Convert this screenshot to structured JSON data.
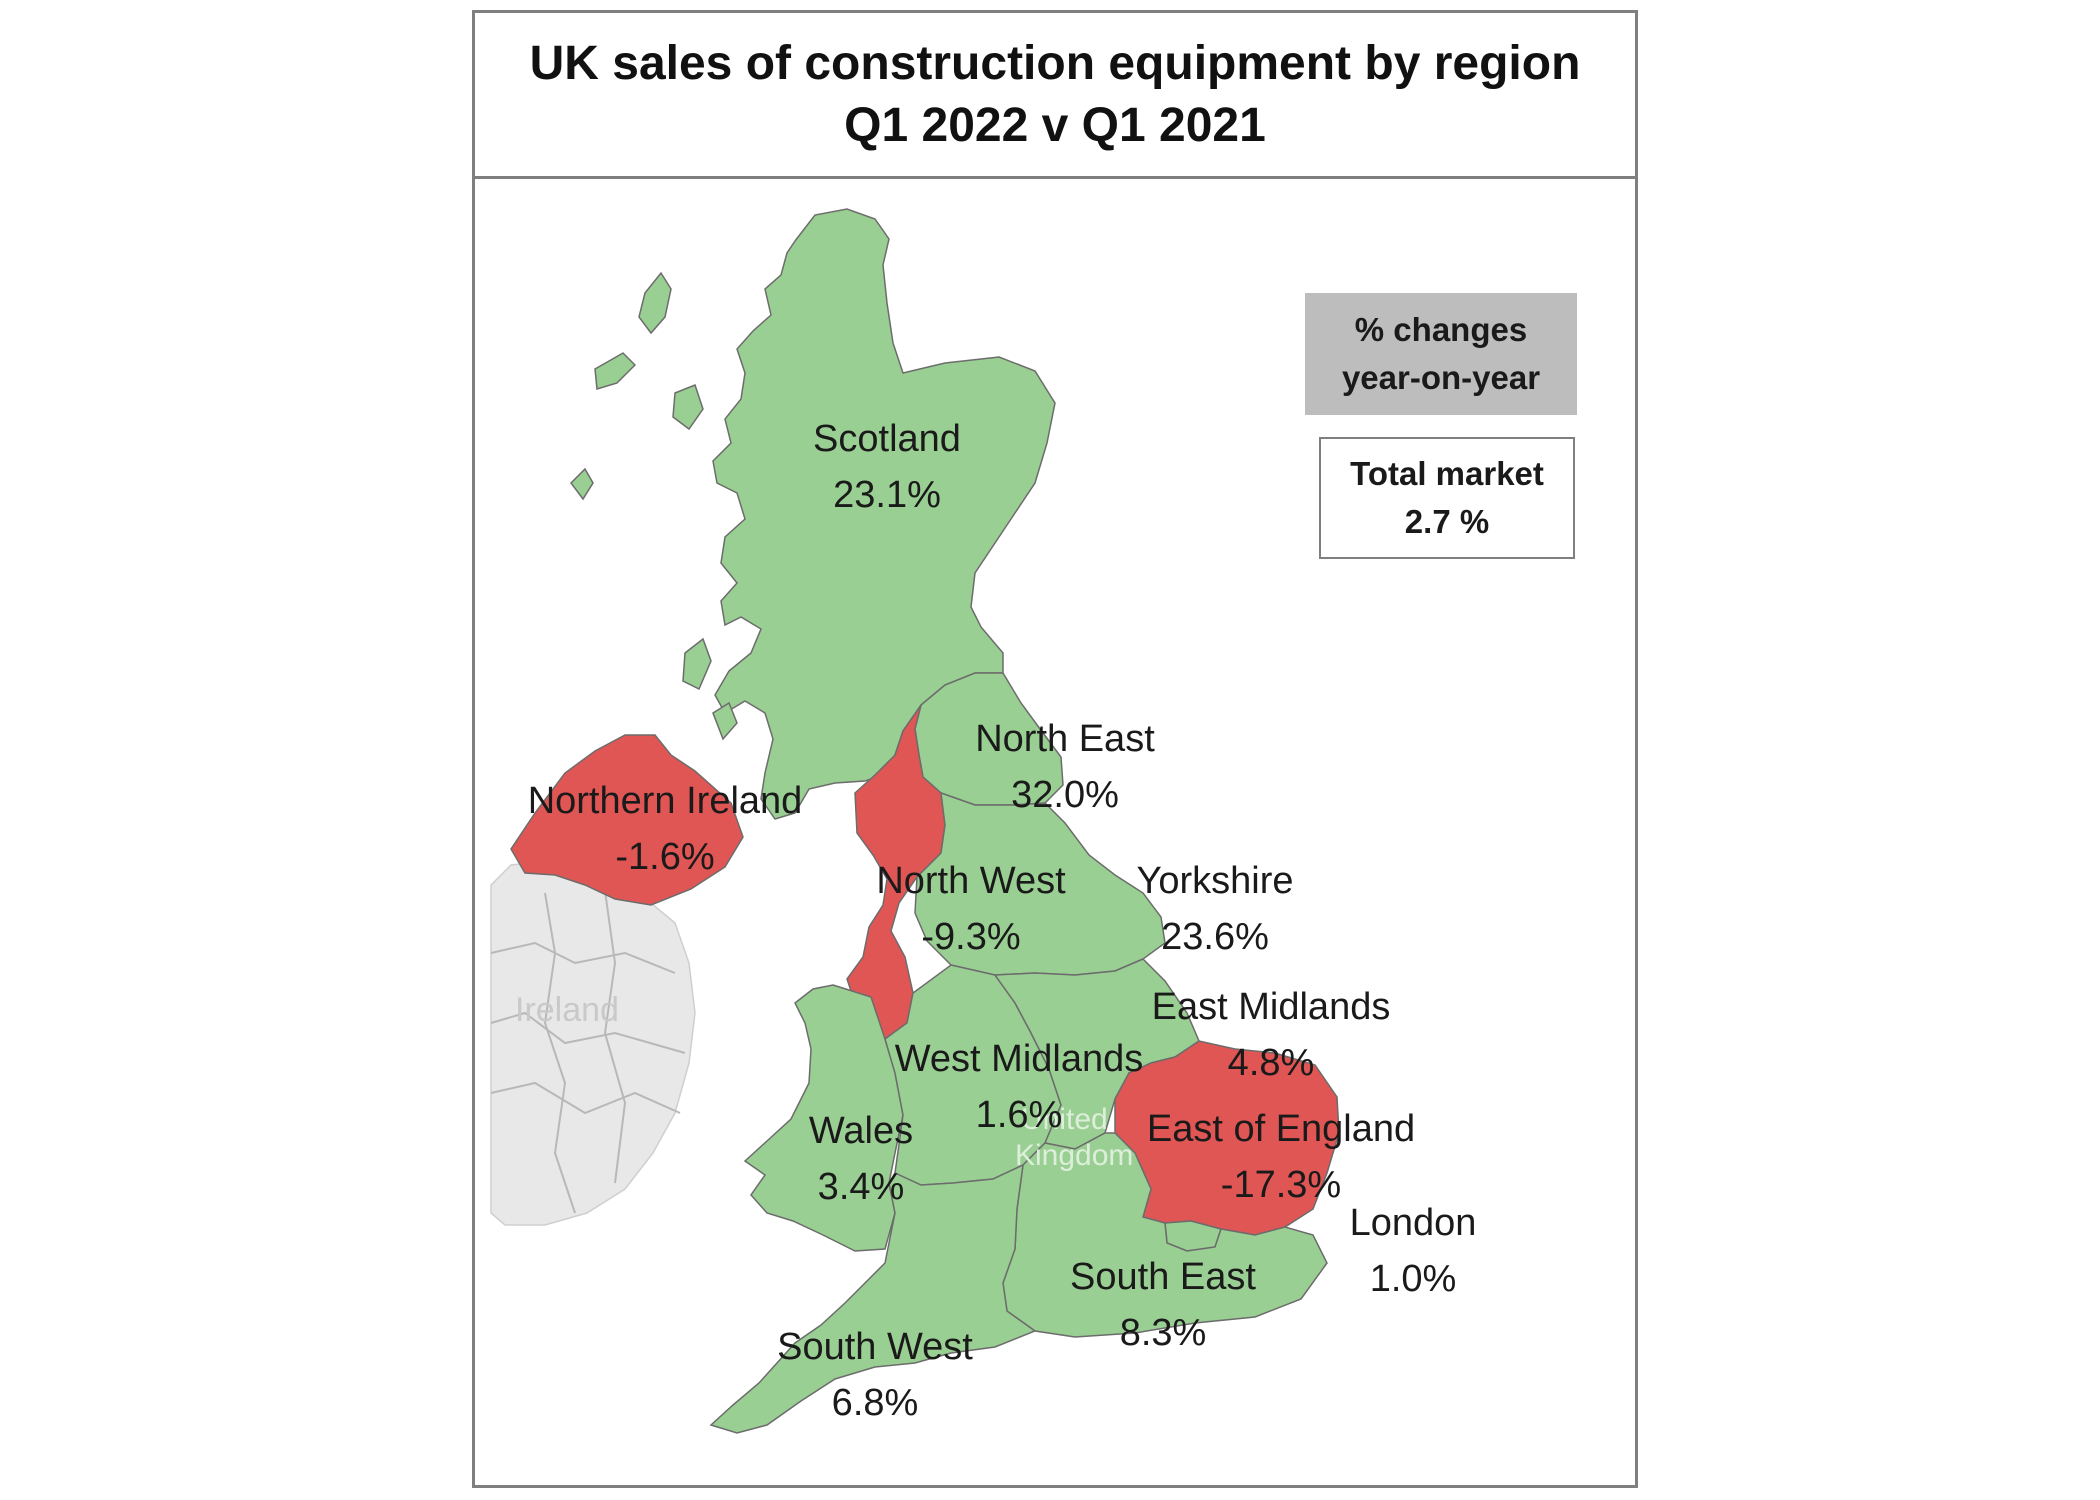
{
  "title": {
    "line1": "UK sales of construction  equipment by region",
    "line2": "Q1 2022  v  Q1 2021"
  },
  "legend": {
    "line1": "% changes",
    "line2": "year-on-year"
  },
  "total": {
    "label": "Total market",
    "value": "2.7 %"
  },
  "colors": {
    "increase": "#99cf92",
    "decrease": "#e05654",
    "ireland": "#e8e8e8",
    "border": "#6c6c6c"
  },
  "basemap": {
    "ireland": "Ireland",
    "uk_line1": "United",
    "uk_line2": "Kingdom"
  },
  "regions": [
    {
      "id": "scotland",
      "name": "Scotland",
      "value": "23.1%",
      "status": "increase"
    },
    {
      "id": "north-east",
      "name": "North East",
      "value": "32.0%",
      "status": "increase"
    },
    {
      "id": "northern-ireland",
      "name": "Northern Ireland",
      "value": "-1.6%",
      "status": "decrease"
    },
    {
      "id": "north-west",
      "name": "North West",
      "value": "-9.3%",
      "status": "decrease"
    },
    {
      "id": "yorkshire",
      "name": "Yorkshire",
      "value": "23.6%",
      "status": "increase"
    },
    {
      "id": "east-midlands",
      "name": "East Midlands",
      "value": "4.8%",
      "status": "increase"
    },
    {
      "id": "west-midlands",
      "name": "West Midlands",
      "value": "1.6%",
      "status": "increase"
    },
    {
      "id": "wales",
      "name": "Wales",
      "value": "3.4%",
      "status": "increase"
    },
    {
      "id": "east-of-england",
      "name": "East of England",
      "value": "-17.3%",
      "status": "decrease"
    },
    {
      "id": "london",
      "name": "London",
      "value": "1.0%",
      "status": "increase"
    },
    {
      "id": "south-east",
      "name": "South East",
      "value": "8.3%",
      "status": "increase"
    },
    {
      "id": "south-west",
      "name": "South West",
      "value": "6.8%",
      "status": "increase"
    }
  ]
}
